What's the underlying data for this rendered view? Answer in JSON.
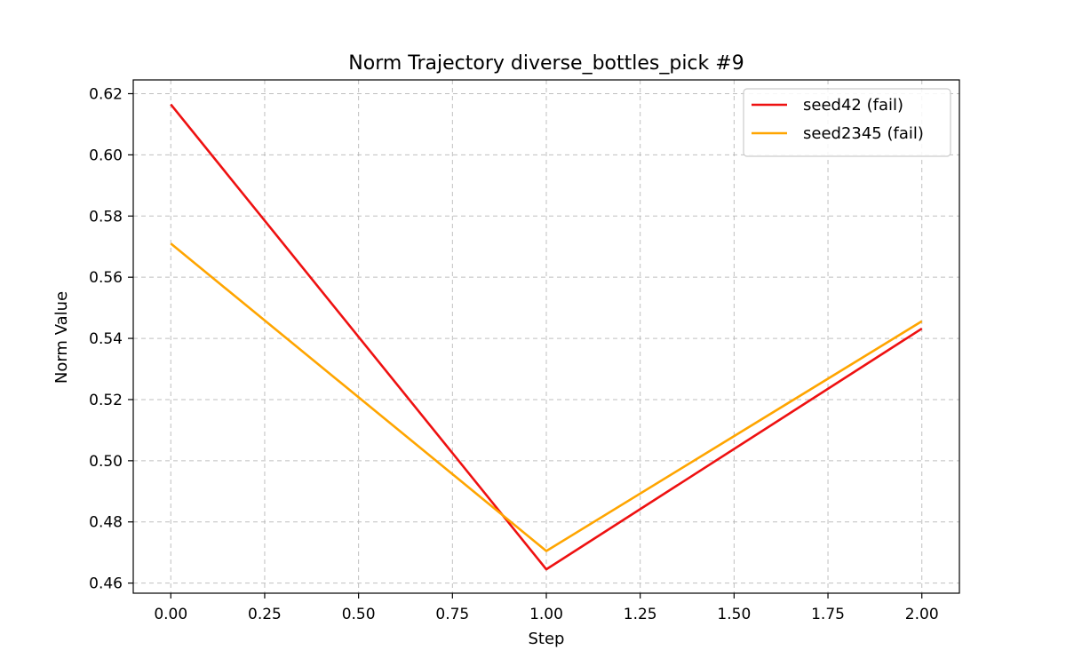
{
  "chart_data": {
    "type": "line",
    "title": "Norm Trajectory diverse_bottles_pick #9",
    "xlabel": "Step",
    "ylabel": "Norm Value",
    "x": [
      0,
      1,
      2
    ],
    "xlim": [
      -0.1,
      2.1
    ],
    "ylim": [
      0.4567,
      0.6245
    ],
    "xticks": [
      0.0,
      0.25,
      0.5,
      0.75,
      1.0,
      1.25,
      1.5,
      1.75,
      2.0
    ],
    "xtick_labels": [
      "0.00",
      "0.25",
      "0.50",
      "0.75",
      "1.00",
      "1.25",
      "1.50",
      "1.75",
      "2.00"
    ],
    "yticks": [
      0.46,
      0.48,
      0.5,
      0.52,
      0.54,
      0.56,
      0.58,
      0.6,
      0.62
    ],
    "ytick_labels": [
      "0.46",
      "0.48",
      "0.50",
      "0.52",
      "0.54",
      "0.56",
      "0.58",
      "0.60",
      "0.62"
    ],
    "grid": true,
    "legend_position": "top-right",
    "series": [
      {
        "name": "seed42 (fail)",
        "color": "#ee1111",
        "values": [
          0.6165,
          0.4645,
          0.5432
        ]
      },
      {
        "name": "seed2345 (fail)",
        "color": "#ffa500",
        "values": [
          0.571,
          0.4705,
          0.5456
        ]
      }
    ]
  }
}
